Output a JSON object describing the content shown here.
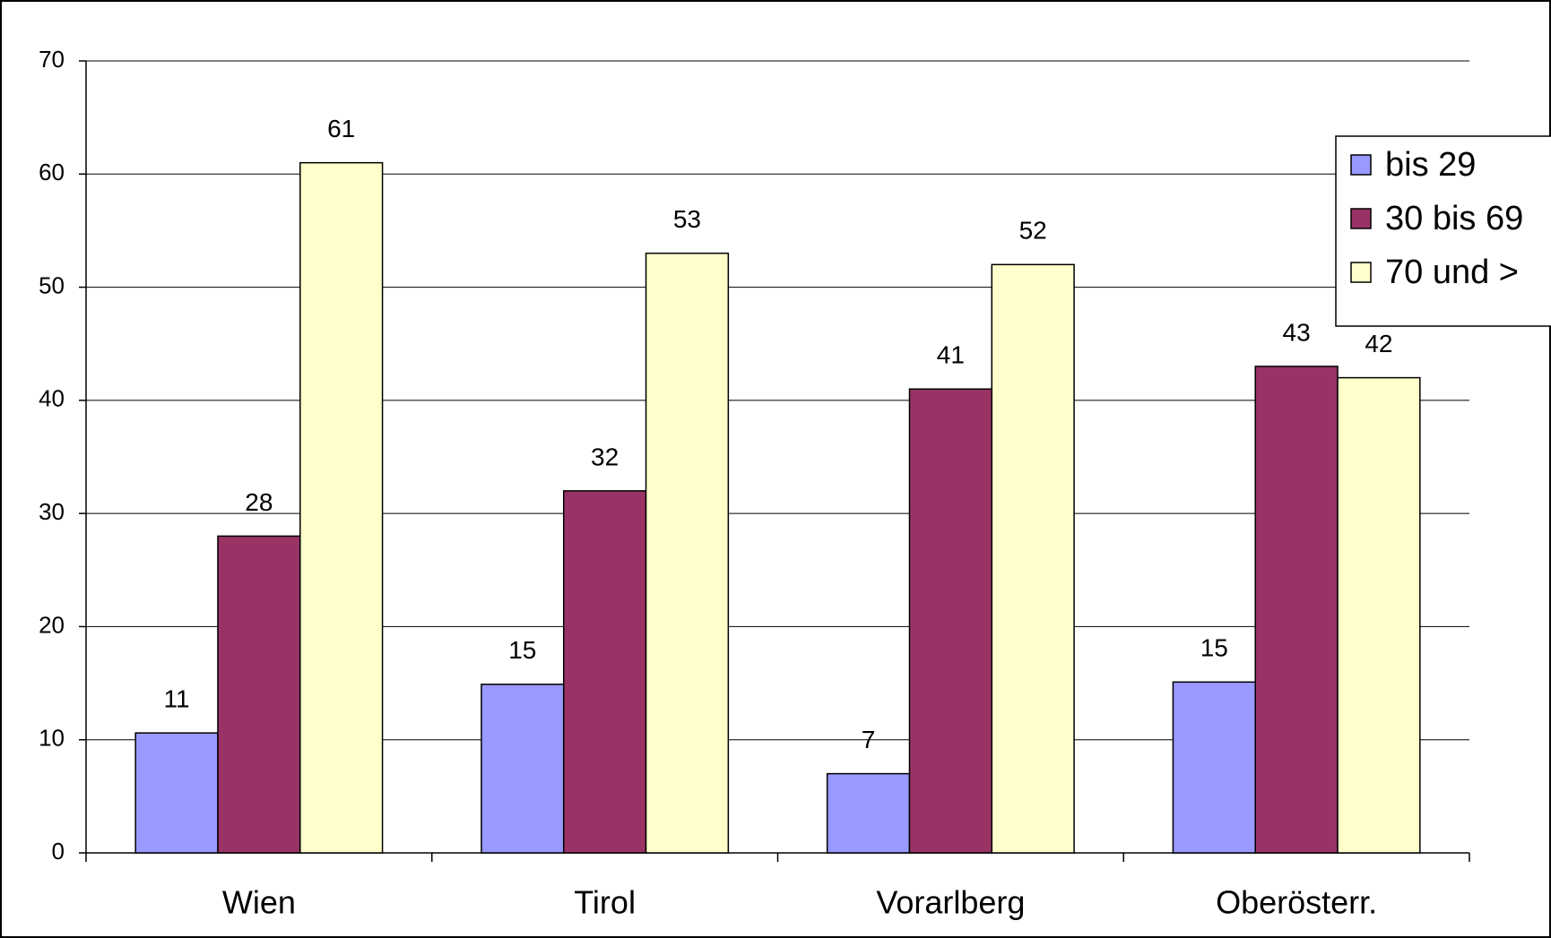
{
  "chart_data": {
    "type": "bar",
    "categories": [
      "Wien",
      "Tirol",
      "Vorarlberg",
      "Oberösterr."
    ],
    "series": [
      {
        "name": "bis 29",
        "color": "#9999ff",
        "values": [
          10.6,
          14.9,
          7,
          15.1
        ],
        "value_labels": [
          "11",
          "15",
          "7",
          "15"
        ]
      },
      {
        "name": "30 bis 69",
        "color": "#993366",
        "values": [
          28,
          32,
          41,
          43
        ]
      },
      {
        "name": "70 und >",
        "color": "#ffffcc",
        "values": [
          61,
          53,
          52,
          42
        ]
      }
    ],
    "ylim": [
      0,
      70
    ],
    "yticks": [
      0,
      10,
      20,
      30,
      40,
      50,
      60,
      70
    ],
    "grid": true,
    "legend": "right"
  }
}
